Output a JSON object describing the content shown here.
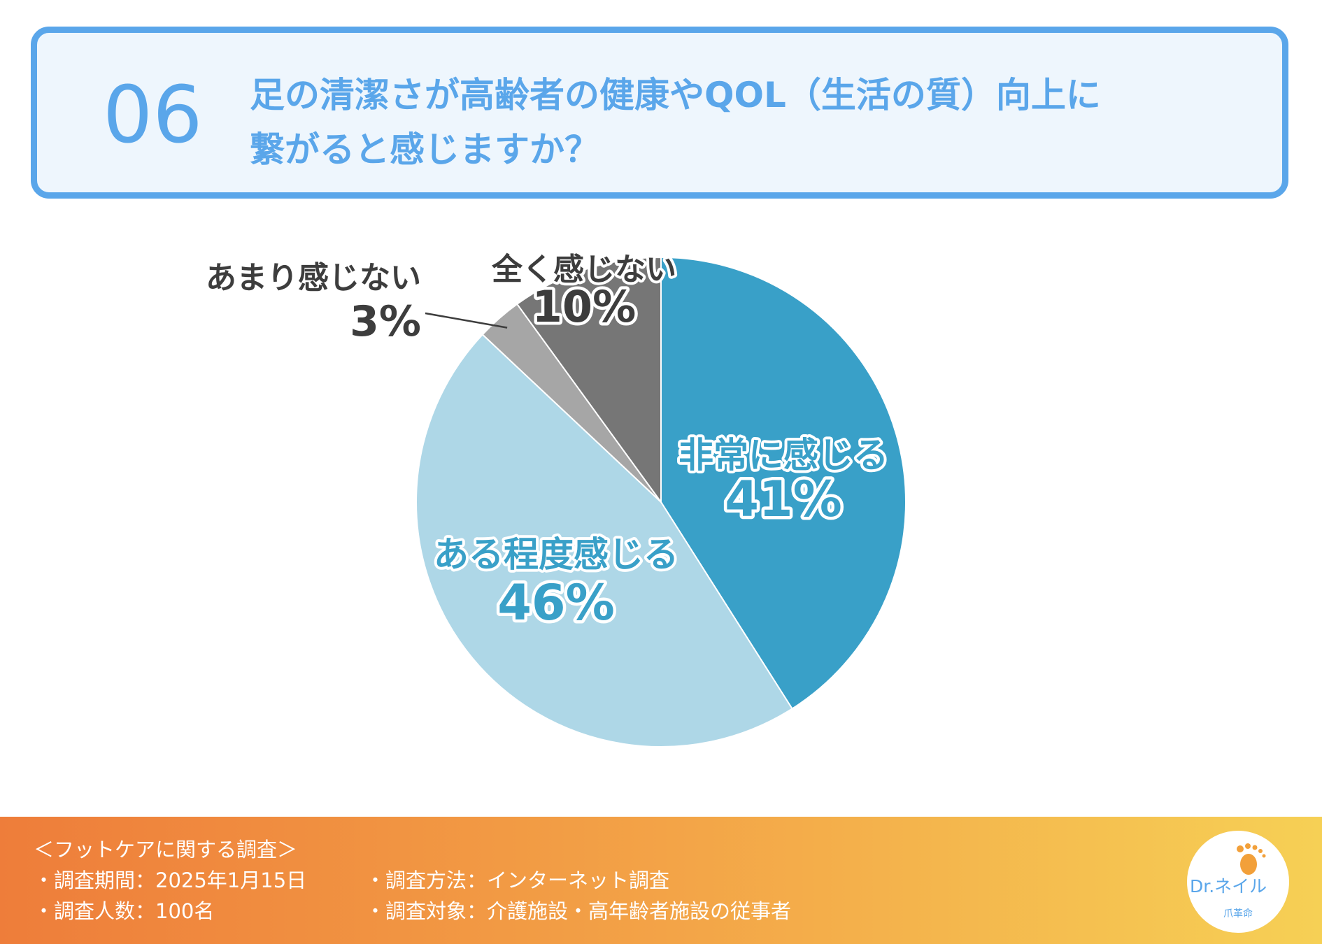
{
  "question": {
    "number": "06",
    "line1": "足の清潔さが高齢者の健康やQOL（生活の質）向上に",
    "line2": "繋がると感じますか？"
  },
  "chart_data": {
    "type": "pie",
    "title": "",
    "start": "12 o'clock, clockwise",
    "slices": [
      {
        "label": "非常に感じる",
        "value": 41,
        "value_label": "41%",
        "color": "#39a0c8",
        "text_color": "#39a0c8"
      },
      {
        "label": "ある程度感じる",
        "value": 46,
        "value_label": "46%",
        "color": "#aed7e7",
        "text_color": "#39a0c8"
      },
      {
        "label": "あまり感じない",
        "value": 3,
        "value_label": "3%",
        "color": "#a6a6a6",
        "text_color": "#3d3d3d"
      },
      {
        "label": "全く感じない",
        "value": 10,
        "value_label": "10%",
        "color": "#767676",
        "text_color": "#3d3d3d"
      }
    ]
  },
  "footer": {
    "title": "＜フットケアに関する調査＞",
    "period": "・調査期間：2025年1月15日",
    "method": "・調査方法：インターネット調査",
    "count": "・調査人数：100名",
    "target": "・調査対象：介護施設・高年齢者施設の従事者"
  },
  "logo": {
    "main": "Dr.ネイル",
    "sub": "爪革命"
  }
}
